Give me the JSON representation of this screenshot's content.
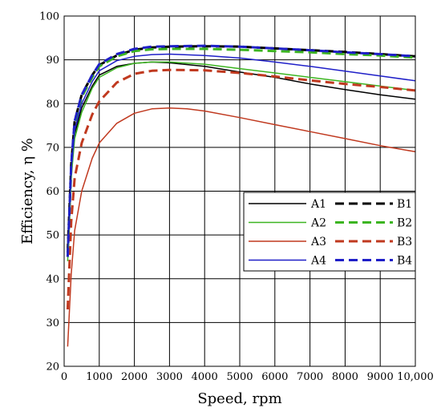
{
  "chart_data": {
    "type": "line",
    "title": "",
    "xlabel": "Speed, rpm",
    "ylabel": "Efficiency, η %",
    "xlim": [
      0,
      10000
    ],
    "ylim": [
      20,
      100
    ],
    "xticks": [
      0,
      1000,
      2000,
      3000,
      4000,
      5000,
      6000,
      7000,
      8000,
      9000,
      10000
    ],
    "xtick_labels": [
      "0",
      "1000",
      "2000",
      "3000",
      "4000",
      "5000",
      "6000",
      "7000",
      "8000",
      "9000",
      "10,000"
    ],
    "yticks": [
      20,
      30,
      40,
      50,
      60,
      70,
      80,
      90,
      100
    ],
    "ytick_labels": [
      "20",
      "30",
      "40",
      "50",
      "60",
      "70",
      "80",
      "90",
      "100"
    ],
    "grid": true,
    "legend_position": "middle-right",
    "series": [
      {
        "name": "A1",
        "color": "#000000",
        "dash": "solid",
        "x": [
          100,
          200,
          300,
          500,
          800,
          1000,
          1500,
          2000,
          2500,
          3000,
          4000,
          5000,
          6000,
          7000,
          8000,
          9000,
          10000
        ],
        "y": [
          48,
          65,
          73,
          79,
          84,
          86.5,
          88.5,
          89.2,
          89.5,
          89.3,
          88.5,
          87.2,
          86,
          84.5,
          83.2,
          82,
          81
        ]
      },
      {
        "name": "B1",
        "color": "#000000",
        "dash": "dashed",
        "x": [
          100,
          200,
          300,
          500,
          800,
          1000,
          1500,
          2000,
          2500,
          3000,
          4000,
          5000,
          6000,
          7000,
          8000,
          9000,
          10000
        ],
        "y": [
          46,
          66,
          76,
          82,
          86.5,
          88.8,
          91,
          92.3,
          92.8,
          93,
          93.1,
          93,
          92.6,
          92.2,
          91.8,
          91.3,
          90.8
        ]
      },
      {
        "name": "A2",
        "color": "#3cb521",
        "dash": "solid",
        "x": [
          100,
          200,
          300,
          500,
          800,
          1000,
          1500,
          2000,
          2500,
          3000,
          4000,
          5000,
          6000,
          7000,
          8000,
          9000,
          10000
        ],
        "y": [
          44,
          63,
          72,
          78,
          83.5,
          86,
          88.2,
          89.2,
          89.5,
          89.5,
          89,
          88,
          87,
          86,
          85,
          84,
          83
        ]
      },
      {
        "name": "B2",
        "color": "#3cb521",
        "dash": "dashed",
        "x": [
          100,
          200,
          300,
          500,
          800,
          1000,
          1500,
          2000,
          2500,
          3000,
          4000,
          5000,
          6000,
          7000,
          8000,
          9000,
          10000
        ],
        "y": [
          45,
          65,
          75,
          81.5,
          86,
          88.5,
          90.8,
          92,
          92.4,
          92.5,
          92.5,
          92.3,
          92,
          91.7,
          91.3,
          91,
          90.5
        ]
      },
      {
        "name": "A3",
        "color": "#c0391f",
        "dash": "solid",
        "x": [
          100,
          200,
          300,
          500,
          800,
          1000,
          1500,
          2000,
          2500,
          3000,
          3500,
          4000,
          5000,
          6000,
          7000,
          8000,
          9000,
          10000
        ],
        "y": [
          24.5,
          41,
          51,
          60,
          67.5,
          71,
          75.5,
          77.8,
          78.8,
          79,
          78.8,
          78.3,
          76.8,
          75.2,
          73.6,
          72,
          70.4,
          69
        ]
      },
      {
        "name": "B3",
        "color": "#c0391f",
        "dash": "dashed",
        "x": [
          100,
          200,
          300,
          500,
          800,
          1000,
          1500,
          2000,
          2500,
          3000,
          4000,
          5000,
          6000,
          7000,
          8000,
          9000,
          10000
        ],
        "y": [
          33,
          53,
          63,
          71,
          77.5,
          80.5,
          84.8,
          86.8,
          87.5,
          87.7,
          87.6,
          87,
          86.2,
          85.3,
          84.5,
          83.8,
          83
        ]
      },
      {
        "name": "A4",
        "color": "#1f1fc8",
        "dash": "solid",
        "x": [
          100,
          200,
          300,
          500,
          800,
          1000,
          1500,
          2000,
          2500,
          3000,
          4000,
          5000,
          6000,
          7000,
          8000,
          9000,
          10000
        ],
        "y": [
          46,
          65,
          74,
          80,
          85,
          87.5,
          89.8,
          90.8,
          91.2,
          91.3,
          91,
          90.4,
          89.5,
          88.5,
          87.4,
          86.3,
          85.2
        ]
      },
      {
        "name": "B4",
        "color": "#1f1fc8",
        "dash": "dashed",
        "x": [
          100,
          200,
          300,
          500,
          800,
          1000,
          1500,
          2000,
          2500,
          3000,
          4000,
          5000,
          6000,
          7000,
          8000,
          9000,
          10000
        ],
        "y": [
          45,
          66,
          76,
          82,
          86.5,
          89,
          91.3,
          92.5,
          93,
          93.1,
          93.2,
          93,
          92.6,
          92.2,
          91.7,
          91.3,
          90.8
        ]
      }
    ]
  }
}
